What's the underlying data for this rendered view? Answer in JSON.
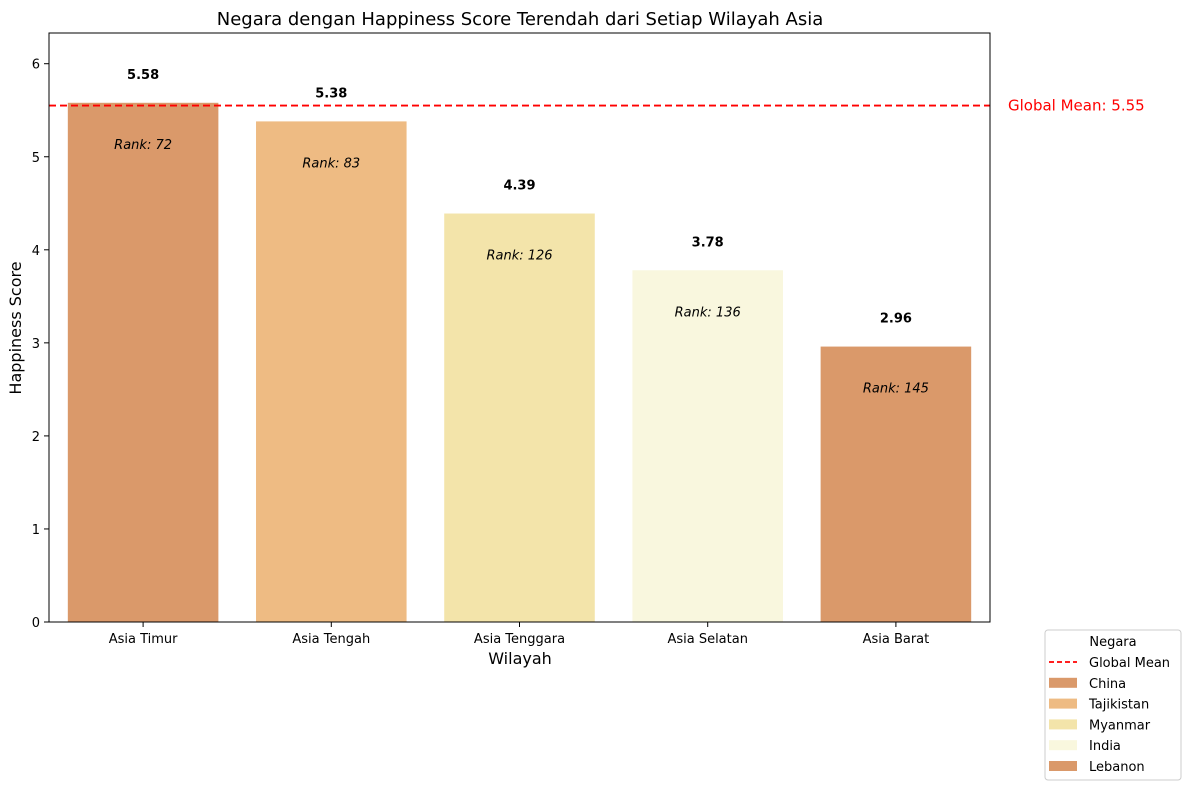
{
  "chart_data": {
    "type": "bar",
    "title": "Negara dengan Happiness Score Terendah dari Setiap Wilayah Asia",
    "xlabel": "Wilayah",
    "ylabel": "Happiness Score",
    "categories": [
      "Asia Timur",
      "Asia Tengah",
      "Asia Tenggara",
      "Asia Selatan",
      "Asia Barat"
    ],
    "values": [
      5.58,
      5.38,
      4.39,
      3.78,
      2.96
    ],
    "value_labels": [
      "5.58",
      "5.38",
      "4.39",
      "3.78",
      "2.96"
    ],
    "rank_labels": [
      "Rank: 72",
      "Rank: 83",
      "Rank: 126",
      "Rank: 136",
      "Rank: 145"
    ],
    "countries": [
      "China",
      "Tajikistan",
      "Myanmar",
      "India",
      "Lebanon"
    ],
    "colors": [
      "#DA996A",
      "#EEBB83",
      "#F3E4AA",
      "#F9F7DE",
      "#DA996A"
    ],
    "ylim": [
      0,
      6.33
    ],
    "yticks": [
      "0",
      "1",
      "2",
      "3",
      "4",
      "5",
      "6"
    ],
    "grid": false,
    "reference_line": {
      "value": 5.55,
      "label": "Global Mean: 5.55",
      "color": "#FF0000",
      "style": "dashed"
    },
    "legend": {
      "title": "Negara",
      "placement": "outside-bottom-right",
      "entries": [
        "Global Mean",
        "China",
        "Tajikistan",
        "Myanmar",
        "India",
        "Lebanon"
      ]
    }
  }
}
